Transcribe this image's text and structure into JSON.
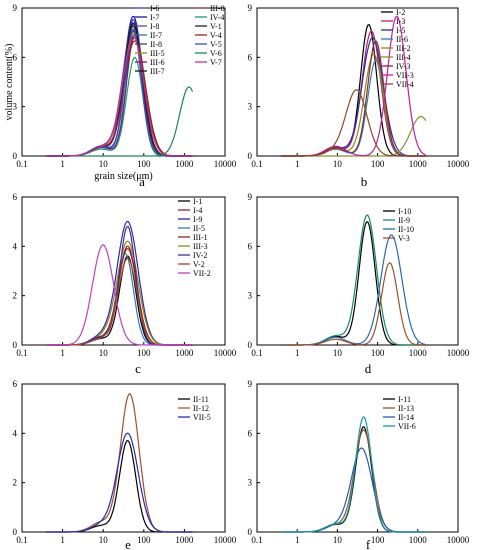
{
  "chart_data": [
    {
      "panel": "a",
      "type": "line",
      "xscale": "log",
      "xlim": [
        0.1,
        10000
      ],
      "ylim": [
        0,
        9
      ],
      "yticks": [
        0,
        3,
        6,
        9
      ],
      "xticks": [
        "0.1",
        "1",
        "10",
        "100",
        "1000",
        "10000"
      ],
      "xlabel": "grain size(μm)",
      "ylabel": "volume content(%)",
      "legend_cols": 2,
      "series": [
        {
          "name": "I-6",
          "color": "#3a3ad0",
          "mode": 55,
          "peak": 8.3
        },
        {
          "name": "I-7",
          "color": "#1a1aa0",
          "mode": 55,
          "peak": 8.5
        },
        {
          "name": "I-8",
          "color": "#6a3fa0",
          "mode": 55,
          "peak": 8.0
        },
        {
          "name": "II-7",
          "color": "#2c6fb0",
          "mode": 60,
          "peak": 7.8
        },
        {
          "name": "II-8",
          "color": "#444444",
          "mode": 55,
          "peak": 7.6
        },
        {
          "name": "III-5",
          "color": "#8a8a1a",
          "mode": 55,
          "peak": 7.5
        },
        {
          "name": "III-6",
          "color": "#7a1a6a",
          "mode": 60,
          "peak": 7.4
        },
        {
          "name": "III-7",
          "color": "#1a1a1a",
          "mode": 55,
          "peak": 8.1
        },
        {
          "name": "III-8",
          "color": "#8a2a2a",
          "mode": 60,
          "peak": 7.2
        },
        {
          "name": "IV-4",
          "color": "#1aa06a",
          "mode": 60,
          "peak": 6.0
        },
        {
          "name": "V-1",
          "color": "#222222",
          "mode": 55,
          "peak": 7.9
        },
        {
          "name": "V-4",
          "color": "#a02020",
          "mode": 60,
          "peak": 7.0
        },
        {
          "name": "V-5",
          "color": "#3050c0",
          "mode": 55,
          "peak": 7.7
        },
        {
          "name": "V-6",
          "color": "#1a8a4a",
          "mode": 1300,
          "peak": 4.2
        },
        {
          "name": "V-7",
          "color": "#c030a0",
          "mode": 55,
          "peak": 7.3
        }
      ]
    },
    {
      "panel": "b",
      "type": "line",
      "xscale": "log",
      "xlim": [
        0.1,
        10000
      ],
      "ylim": [
        0,
        9
      ],
      "yticks": [
        0,
        3,
        6,
        9
      ],
      "xticks": [
        "0.1",
        "1",
        "10",
        "100",
        "1000",
        "10000"
      ],
      "legend_cols": 1,
      "series": [
        {
          "name": "I-2",
          "color": "#000000",
          "mode": 60,
          "peak": 8.0
        },
        {
          "name": "I-3",
          "color": "#c02060",
          "mode": 70,
          "peak": 7.6
        },
        {
          "name": "I-5",
          "color": "#2a2ab0",
          "mode": 75,
          "peak": 7.2
        },
        {
          "name": "II-6",
          "color": "#2a80c0",
          "mode": 90,
          "peak": 5.8
        },
        {
          "name": "III-2",
          "color": "#8a8a20",
          "mode": 80,
          "peak": 6.2
        },
        {
          "name": "III-4",
          "color": "#7a9a2a",
          "mode": 1200,
          "peak": 2.4
        },
        {
          "name": "IV-3",
          "color": "#8a2a2a",
          "mode": 90,
          "peak": 7.0
        },
        {
          "name": "VII-3",
          "color": "#c020a0",
          "mode": 300,
          "peak": 8.5
        },
        {
          "name": "VII-4",
          "color": "#8a4a2a",
          "mode": 30,
          "peak": 4.0
        }
      ]
    },
    {
      "panel": "c",
      "type": "line",
      "xscale": "log",
      "xlim": [
        0.1,
        10000
      ],
      "ylim": [
        0,
        6
      ],
      "yticks": [
        0,
        2,
        4,
        6
      ],
      "xticks": [
        "0.1",
        "1",
        "10",
        "100",
        "1000",
        "10000"
      ],
      "legend_cols": 1,
      "series": [
        {
          "name": "I-1",
          "color": "#000000",
          "mode": 40,
          "peak": 3.6
        },
        {
          "name": "I-4",
          "color": "#8a2a2a",
          "mode": 40,
          "peak": 4.0
        },
        {
          "name": "I-9",
          "color": "#2a2ab0",
          "mode": 40,
          "peak": 5.0
        },
        {
          "name": "II-5",
          "color": "#2a80c0",
          "mode": 35,
          "peak": 3.7
        },
        {
          "name": "III-1",
          "color": "#a02020",
          "mode": 40,
          "peak": 3.9
        },
        {
          "name": "III-3",
          "color": "#8a8a20",
          "mode": 40,
          "peak": 4.2
        },
        {
          "name": "IV-2",
          "color": "#4a2a8a",
          "mode": 40,
          "peak": 4.8
        },
        {
          "name": "V-2",
          "color": "#a04a2a",
          "mode": 40,
          "peak": 3.5
        },
        {
          "name": "VII-2",
          "color": "#c040c0",
          "mode": 10,
          "peak": 3.8
        }
      ]
    },
    {
      "panel": "d",
      "type": "line",
      "xscale": "log",
      "xlim": [
        0.1,
        10000
      ],
      "ylim": [
        0,
        9
      ],
      "yticks": [
        0,
        3,
        6,
        9
      ],
      "xticks": [
        "0.1",
        "1",
        "10",
        "100",
        "1000",
        "10000"
      ],
      "legend_cols": 1,
      "series": [
        {
          "name": "I-10",
          "color": "#000000",
          "mode": 55,
          "peak": 7.5
        },
        {
          "name": "II-9",
          "color": "#1a8a6a",
          "mode": 55,
          "peak": 7.9
        },
        {
          "name": "II-10",
          "color": "#2a6ab0",
          "mode": 220,
          "peak": 6.7
        },
        {
          "name": "V-3",
          "color": "#a0502a",
          "mode": 200,
          "peak": 5.0
        }
      ]
    },
    {
      "panel": "e",
      "type": "line",
      "xscale": "log",
      "xlim": [
        0.1,
        10000
      ],
      "ylim": [
        0,
        6
      ],
      "yticks": [
        0,
        2,
        4,
        6
      ],
      "xticks": [
        "0.1",
        "1",
        "10",
        "100",
        "1000",
        "10000"
      ],
      "legend_cols": 1,
      "series": [
        {
          "name": "II-11",
          "color": "#000000",
          "mode": 40,
          "peak": 3.7
        },
        {
          "name": "II-12",
          "color": "#a0502a",
          "mode": 45,
          "peak": 5.6
        },
        {
          "name": "VII-5",
          "color": "#2a2ab0",
          "mode": 40,
          "peak": 4.0
        }
      ]
    },
    {
      "panel": "f",
      "type": "line",
      "xscale": "log",
      "xlim": [
        0.1,
        10000
      ],
      "ylim": [
        0,
        9
      ],
      "yticks": [
        0,
        3,
        6,
        9
      ],
      "xticks": [
        "0.1",
        "1",
        "10",
        "100",
        "1000",
        "10000"
      ],
      "legend_cols": 1,
      "series": [
        {
          "name": "I-11",
          "color": "#000000",
          "mode": 45,
          "peak": 6.4
        },
        {
          "name": "II-13",
          "color": "#a0502a",
          "mode": 45,
          "peak": 6.2
        },
        {
          "name": "II-14",
          "color": "#2a5ab0",
          "mode": 40,
          "peak": 5.1
        },
        {
          "name": "VII-6",
          "color": "#1a9a9a",
          "mode": 45,
          "peak": 7.0
        }
      ]
    }
  ]
}
